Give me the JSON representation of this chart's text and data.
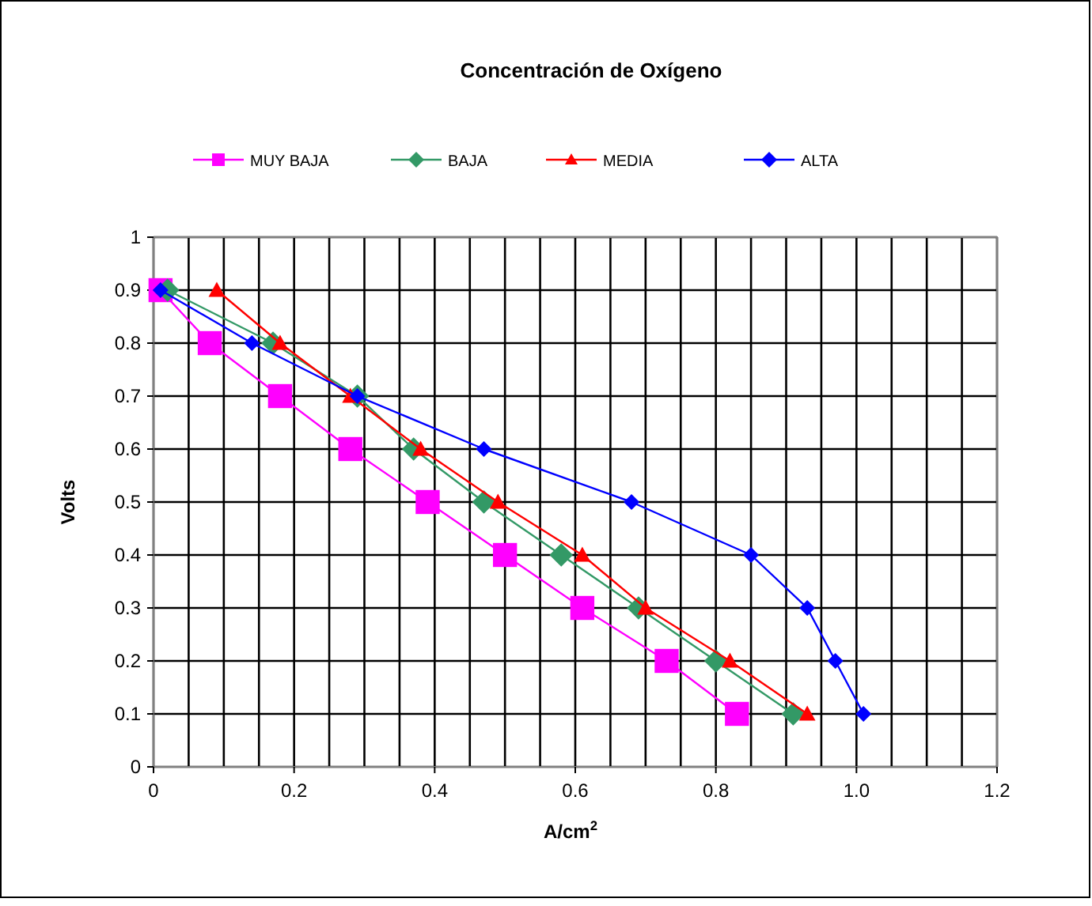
{
  "chart_data": {
    "type": "line",
    "title": "Concentración de Oxígeno",
    "xlabel": "A/cm$^{2}$",
    "ylabel": "Volts",
    "xlim": [
      0,
      1.2
    ],
    "ylim": [
      0,
      1
    ],
    "xticks": [
      0,
      {
        "value": 0.05,
        "label": null
      },
      {
        "value": 0.1,
        "label": null
      },
      {
        "value": 0.15,
        "label": null
      },
      {
        "value": 0.2,
        "label": "0.2"
      },
      {
        "value": 0.25,
        "label": null
      },
      {
        "value": 0.3,
        "label": null
      },
      {
        "value": 0.35,
        "label": null
      },
      {
        "value": 0.4,
        "label": "0.4"
      },
      {
        "value": 0.45,
        "label": null
      },
      {
        "value": 0.5,
        "label": null
      },
      {
        "value": 0.55,
        "label": null
      },
      {
        "value": 0.6,
        "label": "0.6"
      },
      {
        "value": 0.65,
        "label": null
      },
      {
        "value": 0.7,
        "label": null
      },
      {
        "value": 0.75,
        "label": null
      },
      {
        "value": 0.8,
        "label": "0.8"
      },
      {
        "value": 0.85,
        "label": null
      },
      {
        "value": 0.9,
        "label": null
      },
      {
        "value": 0.95,
        "label": null
      },
      {
        "value": 1,
        "label": "1.0"
      },
      {
        "value": 1.05,
        "label": null
      },
      {
        "value": 1.1,
        "label": null
      },
      {
        "value": 1.15,
        "label": null
      },
      {
        "value": 1.2,
        "label": "1.2"
      }
    ],
    "yticks": [
      0,
      0.1,
      0.2,
      0.3,
      0.4,
      0.5,
      0.6,
      0.7,
      0.8,
      0.9,
      1
    ],
    "grid": true,
    "legend": "top",
    "series": [
      {
        "name": "MUY BAJA",
        "color": "#ff00ff",
        "marker": "square",
        "x": [
          0.01,
          0.08,
          0.18,
          0.28,
          0.39,
          0.5,
          0.61,
          0.73,
          0.83
        ],
        "values": [
          0.9,
          0.8,
          0.7,
          0.6,
          0.5,
          0.4,
          0.3,
          0.2,
          0.1
        ]
      },
      {
        "name": "BAJA",
        "color": "#339966",
        "marker": "diamond",
        "x": [
          0.02,
          0.17,
          0.29,
          0.37,
          0.47,
          0.58,
          0.69,
          0.8,
          0.91
        ],
        "values": [
          0.9,
          0.8,
          0.7,
          0.6,
          0.5,
          0.4,
          0.3,
          0.2,
          0.1
        ]
      },
      {
        "name": "MEDIA",
        "color": "#ff0000",
        "marker": "triangle",
        "x": [
          0.09,
          0.18,
          0.28,
          0.38,
          0.49,
          0.61,
          0.7,
          0.82,
          0.93
        ],
        "values": [
          0.9,
          0.8,
          0.7,
          0.6,
          0.5,
          0.4,
          0.3,
          0.2,
          0.1
        ]
      },
      {
        "name": "ALTA",
        "color": "#0000ff",
        "marker": "diamond",
        "x": [
          0.01,
          0.14,
          0.29,
          0.47,
          0.68,
          0.85,
          0.93,
          0.97,
          1.01
        ],
        "values": [
          0.9,
          0.8,
          0.7,
          0.6,
          0.5,
          0.4,
          0.3,
          0.2,
          0.1
        ]
      }
    ]
  }
}
